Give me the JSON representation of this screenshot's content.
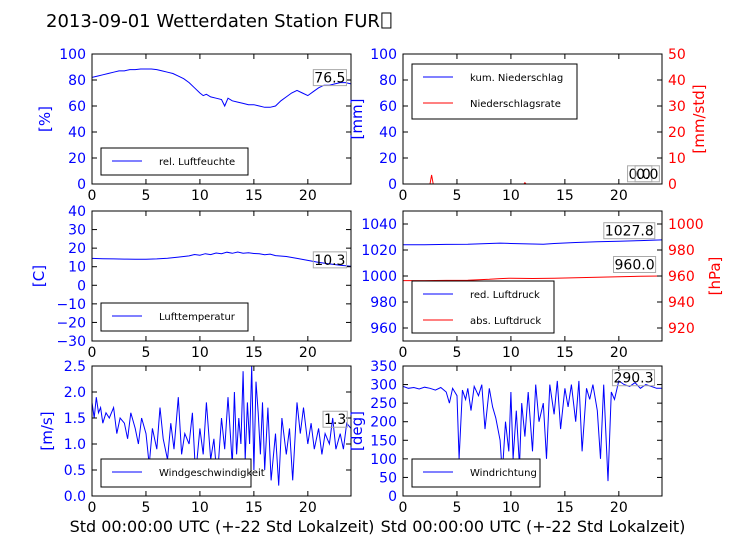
{
  "figure": {
    "title": "2013-09-01 Wetterdaten Station FUR",
    "title_glyph": "☐",
    "xlabel": "Std 00:00:00 UTC (+-22 Std Lokalzeit)",
    "x_ticks": [
      "0",
      "5",
      "10",
      "15",
      "20"
    ],
    "colors": {
      "blue": "#0000ff",
      "red": "#ff0000",
      "text": "#000000"
    }
  },
  "chart_data": [
    {
      "id": "humidity",
      "type": "line",
      "xlim": [
        0,
        24
      ],
      "ylim": [
        0,
        100
      ],
      "ylabel": "[%]",
      "y_ticks": [
        "0",
        "20",
        "40",
        "60",
        "80",
        "100"
      ],
      "series": [
        {
          "name": "rel. Luftfeuchte",
          "color": "#0000ff",
          "x": [
            0,
            0.5,
            1,
            1.5,
            2,
            2.5,
            3,
            3.5,
            4,
            4.5,
            5,
            5.5,
            6,
            6.5,
            7,
            7.5,
            8,
            8.5,
            9,
            9.5,
            10,
            10.3,
            10.6,
            11,
            11.5,
            12,
            12.3,
            12.6,
            13,
            13.5,
            14,
            14.5,
            15,
            15.5,
            16,
            16.5,
            17,
            17.5,
            18,
            18.5,
            19,
            19.5,
            20,
            20.5,
            21,
            21.5,
            22,
            22.5,
            23,
            23.5,
            24
          ],
          "y": [
            82,
            83,
            84,
            85,
            86,
            87,
            87,
            88,
            88,
            88.5,
            88.5,
            88.5,
            88,
            87,
            86,
            85,
            83,
            81,
            78,
            74,
            70,
            68,
            69,
            67,
            66,
            65,
            60,
            66,
            64,
            63,
            62,
            61,
            61,
            60,
            59,
            59,
            60,
            64,
            67,
            70,
            72,
            70,
            68,
            71,
            74,
            76,
            76,
            77,
            78,
            78,
            77
          ]
        }
      ],
      "annotations": [
        {
          "text": "76.5",
          "x": 20.6,
          "y": 78
        }
      ],
      "legend": "lower-left"
    },
    {
      "id": "precipitation",
      "type": "line",
      "xlim": [
        0,
        24
      ],
      "ylim": [
        0,
        100
      ],
      "ylim_right": [
        0,
        50
      ],
      "ylabel": "[mm]",
      "ylabel_right": "[mm/std]",
      "y_ticks": [
        "0",
        "20",
        "40",
        "60",
        "80",
        "100"
      ],
      "y_ticks_right": [
        "0",
        "10",
        "20",
        "30",
        "40",
        "50"
      ],
      "series": [
        {
          "name": "kum. Niederschlag",
          "color": "#0000ff",
          "axis": "left",
          "x": [
            0,
            24
          ],
          "y": [
            0,
            0
          ]
        },
        {
          "name": "Niederschlagsrate",
          "color": "#ff0000",
          "axis": "right",
          "x": [
            0,
            2.5,
            2.65,
            2.8,
            3,
            11.2,
            11.3,
            11.4,
            24
          ],
          "y": [
            0,
            0,
            3.5,
            0,
            0,
            0,
            0.5,
            0,
            0
          ]
        }
      ],
      "annotations": [
        {
          "text": "0.0",
          "x": 20.9,
          "y": 4
        },
        {
          "text": "0.0",
          "x": 21.6,
          "y": 4
        }
      ],
      "legend": "top-left"
    },
    {
      "id": "temperature",
      "type": "line",
      "xlim": [
        0,
        24
      ],
      "ylim": [
        -30,
        40
      ],
      "ylabel": "[C]",
      "y_ticks": [
        "−30",
        "−20",
        "−10",
        "0",
        "10",
        "20",
        "30",
        "40"
      ],
      "series": [
        {
          "name": "Lufttemperatur",
          "color": "#0000ff",
          "x": [
            0,
            1,
            2,
            3,
            4,
            5,
            6,
            7,
            8,
            9,
            9.5,
            10,
            10.5,
            11,
            11.5,
            12,
            12.5,
            13,
            13.5,
            14,
            14.5,
            15,
            15.5,
            16,
            16.5,
            17,
            18,
            19,
            20,
            21,
            22,
            23,
            24
          ],
          "y": [
            14.5,
            14.3,
            14.2,
            14.1,
            14,
            14,
            14.2,
            14.6,
            15.2,
            15.8,
            16.6,
            16.2,
            17,
            16.5,
            17.4,
            17,
            17.8,
            17.2,
            17.9,
            17.3,
            17.5,
            17.1,
            17,
            16.4,
            16.8,
            16,
            15.5,
            14.5,
            13.4,
            12.3,
            11.5,
            10.8,
            10.3
          ]
        }
      ],
      "annotations": [
        {
          "text": "10.3",
          "x": 20.6,
          "y": 11
        }
      ],
      "legend": "lower-left"
    },
    {
      "id": "pressure",
      "type": "line",
      "xlim": [
        0,
        24
      ],
      "ylim": [
        950,
        1050
      ],
      "ylim_right": [
        910,
        1010
      ],
      "ylabel": "",
      "ylabel_right": "[hPa]",
      "y_ticks": [
        "960",
        "980",
        "1000",
        "1020",
        "1040"
      ],
      "y_ticks_right": [
        "920",
        "940",
        "960",
        "980",
        "1000"
      ],
      "series": [
        {
          "name": "red. Luftdruck",
          "color": "#0000ff",
          "axis": "left",
          "x": [
            0,
            2,
            4,
            6,
            8,
            9,
            10,
            12,
            13,
            14,
            16,
            18,
            20,
            22,
            24
          ],
          "y": [
            1024,
            1024,
            1024.3,
            1024.5,
            1025,
            1025.3,
            1025,
            1024.6,
            1024.5,
            1025,
            1025.8,
            1026.3,
            1026.8,
            1027.2,
            1027.8
          ]
        },
        {
          "name": "abs. Luftdruck",
          "color": "#ff0000",
          "axis": "right",
          "x": [
            0,
            2,
            4,
            6,
            8,
            9,
            10,
            12,
            14,
            16,
            18,
            20,
            22,
            24
          ],
          "y": [
            956.5,
            956.5,
            956.6,
            956.8,
            957.5,
            958,
            958.3,
            958.1,
            958.3,
            958.7,
            959,
            959.4,
            959.8,
            960
          ]
        }
      ],
      "annotations": [
        {
          "text": "1027.8",
          "x": 18.7,
          "y": 1031
        },
        {
          "text": "960.0",
          "x": 19.6,
          "y": 1005
        }
      ],
      "legend": "lower-left"
    },
    {
      "id": "windspeed",
      "type": "line",
      "xlim": [
        0,
        24
      ],
      "ylim": [
        0,
        2.5
      ],
      "ylabel": "[m/s]",
      "y_ticks": [
        "0.0",
        "0.5",
        "1.0",
        "1.5",
        "2.0",
        "2.5"
      ],
      "series": [
        {
          "name": "Windgeschwindigkeit",
          "color": "#0000ff",
          "x": [
            0,
            0.2,
            0.4,
            0.6,
            0.8,
            1,
            1.3,
            1.6,
            2,
            2.3,
            2.6,
            3,
            3.3,
            3.6,
            4,
            4.3,
            4.6,
            5,
            5.3,
            5.6,
            6,
            6.3,
            6.6,
            7,
            7.3,
            7.6,
            8,
            8.3,
            8.6,
            9,
            9.3,
            9.6,
            10,
            10.3,
            10.6,
            11,
            11.3,
            11.6,
            12,
            12.3,
            12.6,
            13,
            13.2,
            13.4,
            13.6,
            13.8,
            14,
            14.2,
            14.4,
            14.6,
            14.8,
            15,
            15.2,
            15.4,
            15.6,
            15.8,
            16,
            16.3,
            16.6,
            17,
            17.3,
            17.6,
            18,
            18.3,
            18.6,
            19,
            19.3,
            19.6,
            20,
            20.3,
            20.6,
            21,
            21.3,
            21.6,
            22,
            22.3,
            22.6,
            23,
            23.3,
            23.6,
            24
          ],
          "y": [
            1.8,
            1.5,
            1.9,
            1.6,
            1.7,
            1.4,
            1.6,
            1.5,
            1.7,
            1.2,
            1.5,
            1.4,
            1.1,
            1.6,
            1.3,
            1.0,
            1.5,
            1.2,
            0.6,
            1.3,
            0.9,
            1.7,
            1.1,
            0.7,
            1.4,
            0.9,
            1.9,
            0.8,
            1.2,
            1.0,
            1.6,
            0.4,
            1.3,
            0.8,
            1.8,
            0.7,
            1.1,
            0.3,
            1.5,
            0.9,
            1.9,
            0.6,
            2.0,
            0.8,
            1.5,
            1.0,
            2.4,
            0.7,
            1.8,
            1.0,
            2.5,
            0.5,
            2.2,
            1.6,
            0.8,
            1.8,
            0.5,
            1.7,
            0.3,
            1.2,
            0.2,
            1.5,
            0.8,
            1.3,
            0.3,
            1.8,
            1.2,
            1.7,
            1.0,
            1.4,
            0.9,
            1.3,
            0.8,
            1.2,
            1.0,
            1.5,
            0.9,
            1.2,
            0.9,
            1.4,
            1.3
          ]
        }
      ],
      "annotations": [
        {
          "text": "1.3",
          "x": 21.5,
          "y": 1.38
        }
      ],
      "legend": "lower-left"
    },
    {
      "id": "winddirection",
      "type": "line",
      "xlim": [
        0,
        24
      ],
      "ylim": [
        0,
        350
      ],
      "ylabel": "[deg]",
      "y_ticks": [
        "0",
        "50",
        "100",
        "150",
        "200",
        "250",
        "300",
        "350"
      ],
      "series": [
        {
          "name": "Windrichtung",
          "color": "#0000ff",
          "x": [
            0,
            0.5,
            1,
            1.5,
            2,
            2.5,
            3,
            3.5,
            4,
            4.3,
            4.6,
            5,
            5.2,
            5.5,
            5.8,
            6,
            6.3,
            6.6,
            7,
            7.3,
            7.6,
            8,
            8.3,
            8.6,
            9,
            9.2,
            9.5,
            9.8,
            10,
            10.2,
            10.5,
            10.8,
            11,
            11.3,
            11.6,
            12,
            12.3,
            12.6,
            13,
            13.3,
            13.6,
            14,
            14.3,
            14.6,
            15,
            15.3,
            15.6,
            16,
            16.3,
            16.6,
            17,
            17.3,
            17.6,
            18,
            18.3,
            18.6,
            19,
            19.3,
            19.6,
            20,
            20.5,
            21,
            21.5,
            22,
            22.5,
            23,
            23.5,
            24
          ],
          "y": [
            295,
            290,
            292,
            288,
            293,
            290,
            285,
            292,
            280,
            250,
            290,
            270,
            100,
            285,
            260,
            290,
            230,
            295,
            270,
            300,
            180,
            290,
            240,
            210,
            150,
            60,
            200,
            120,
            280,
            100,
            230,
            80,
            250,
            160,
            280,
            120,
            300,
            200,
            250,
            100,
            300,
            220,
            310,
            180,
            290,
            240,
            300,
            200,
            310,
            120,
            290,
            260,
            300,
            230,
            100,
            300,
            40,
            280,
            260,
            310,
            300,
            295,
            305,
            290,
            300,
            295,
            290,
            290
          ]
        }
      ],
      "annotations": [
        {
          "text": "290.3",
          "x": 19.5,
          "y": 305
        }
      ],
      "legend": "lower-left"
    }
  ]
}
